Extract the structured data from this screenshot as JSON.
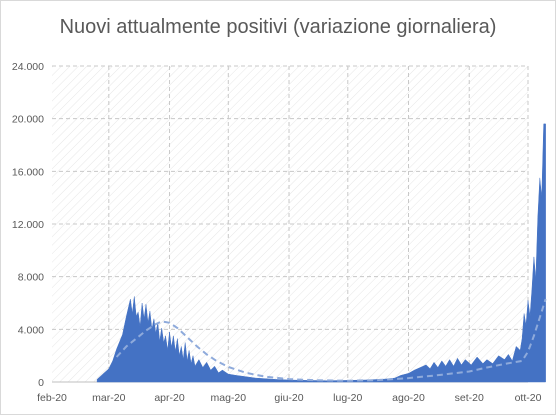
{
  "chart_data": {
    "type": "area",
    "title": "Nuovi attualmente positivi (variazione giornaliera)",
    "xlabel": "",
    "ylabel": "",
    "ylim": [
      0,
      24000
    ],
    "y_ticks": [
      0,
      4000,
      8000,
      12000,
      16000,
      20000,
      24000
    ],
    "y_tick_labels": [
      "0",
      "4.000",
      "8.000",
      "12.000",
      "16.000",
      "20.000",
      "24.000"
    ],
    "x_tick_labels": [
      "feb-20",
      "mar-20",
      "apr-20",
      "mag-20",
      "giu-20",
      "lug-20",
      "ago-20",
      "set-20",
      "ott-20"
    ],
    "x_tick_dates": [
      "2020-02-01",
      "2020-03-01",
      "2020-04-01",
      "2020-05-01",
      "2020-06-01",
      "2020-07-01",
      "2020-08-01",
      "2020-09-01",
      "2020-10-01"
    ],
    "x_range": [
      "2020-02-01",
      "2020-10-01"
    ],
    "grid": "vertical dashed and horizontal dashed",
    "colors": {
      "area": "#4472c4",
      "trend": "#8eaadb"
    },
    "series": [
      {
        "kind": "area",
        "points": [
          [
            "2020-02-24",
            200
          ],
          [
            "2020-02-27",
            600
          ],
          [
            "2020-03-01",
            1000
          ],
          [
            "2020-03-03",
            1600
          ],
          [
            "2020-03-05",
            2500
          ],
          [
            "2020-03-08",
            3600
          ],
          [
            "2020-03-10",
            5000
          ],
          [
            "2020-03-12",
            6300
          ],
          [
            "2020-03-13",
            5200
          ],
          [
            "2020-03-14",
            6500
          ],
          [
            "2020-03-15",
            5000
          ],
          [
            "2020-03-16",
            5300
          ],
          [
            "2020-03-17",
            4200
          ],
          [
            "2020-03-18",
            6000
          ],
          [
            "2020-03-19",
            4800
          ],
          [
            "2020-03-20",
            5900
          ],
          [
            "2020-03-21",
            4500
          ],
          [
            "2020-03-22",
            5400
          ],
          [
            "2020-03-23",
            4000
          ],
          [
            "2020-03-24",
            4800
          ],
          [
            "2020-03-25",
            3700
          ],
          [
            "2020-03-26",
            4500
          ],
          [
            "2020-03-27",
            3100
          ],
          [
            "2020-03-28",
            4100
          ],
          [
            "2020-03-29",
            3000
          ],
          [
            "2020-03-30",
            3500
          ],
          [
            "2020-03-31",
            2400
          ],
          [
            "2020-04-01",
            3800
          ],
          [
            "2020-04-02",
            2600
          ],
          [
            "2020-04-03",
            3500
          ],
          [
            "2020-04-04",
            2300
          ],
          [
            "2020-04-05",
            3300
          ],
          [
            "2020-04-06",
            2000
          ],
          [
            "2020-04-07",
            2700
          ],
          [
            "2020-04-08",
            1700
          ],
          [
            "2020-04-09",
            3000
          ],
          [
            "2020-04-10",
            1600
          ],
          [
            "2020-04-11",
            2400
          ],
          [
            "2020-04-12",
            1400
          ],
          [
            "2020-04-13",
            2000
          ],
          [
            "2020-04-14",
            1200
          ],
          [
            "2020-04-16",
            1700
          ],
          [
            "2020-04-18",
            1100
          ],
          [
            "2020-04-20",
            1500
          ],
          [
            "2020-04-22",
            900
          ],
          [
            "2020-04-24",
            1200
          ],
          [
            "2020-04-26",
            700
          ],
          [
            "2020-04-28",
            900
          ],
          [
            "2020-05-01",
            600
          ],
          [
            "2020-05-05",
            500
          ],
          [
            "2020-05-10",
            400
          ],
          [
            "2020-05-15",
            300
          ],
          [
            "2020-05-20",
            250
          ],
          [
            "2020-05-25",
            200
          ],
          [
            "2020-06-01",
            150
          ],
          [
            "2020-06-10",
            120
          ],
          [
            "2020-06-20",
            100
          ],
          [
            "2020-07-01",
            120
          ],
          [
            "2020-07-10",
            150
          ],
          [
            "2020-07-20",
            220
          ],
          [
            "2020-07-25",
            300
          ],
          [
            "2020-07-28",
            500
          ],
          [
            "2020-08-01",
            650
          ],
          [
            "2020-08-04",
            900
          ],
          [
            "2020-08-07",
            1100
          ],
          [
            "2020-08-10",
            1300
          ],
          [
            "2020-08-12",
            1000
          ],
          [
            "2020-08-14",
            1500
          ],
          [
            "2020-08-16",
            1100
          ],
          [
            "2020-08-18",
            1600
          ],
          [
            "2020-08-20",
            1200
          ],
          [
            "2020-08-22",
            1700
          ],
          [
            "2020-08-24",
            1200
          ],
          [
            "2020-08-26",
            1800
          ],
          [
            "2020-08-28",
            1300
          ],
          [
            "2020-08-30",
            1700
          ],
          [
            "2020-09-02",
            1300
          ],
          [
            "2020-09-05",
            1900
          ],
          [
            "2020-09-08",
            1400
          ],
          [
            "2020-09-10",
            1700
          ],
          [
            "2020-09-13",
            1400
          ],
          [
            "2020-09-16",
            2000
          ],
          [
            "2020-09-19",
            1700
          ],
          [
            "2020-09-21",
            2100
          ],
          [
            "2020-09-23",
            1600
          ],
          [
            "2020-09-25",
            2700
          ],
          [
            "2020-09-27",
            2400
          ],
          [
            "2020-09-28",
            3300
          ],
          [
            "2020-09-29",
            5200
          ],
          [
            "2020-09-30",
            4300
          ],
          [
            "2020-10-01",
            6200
          ],
          [
            "2020-10-02",
            5000
          ],
          [
            "2020-10-03",
            7000
          ],
          [
            "2020-10-04",
            9500
          ],
          [
            "2020-10-05",
            7800
          ],
          [
            "2020-10-06",
            12500
          ],
          [
            "2020-10-07",
            15500
          ],
          [
            "2020-10-08",
            14000
          ],
          [
            "2020-10-09",
            19600
          ],
          [
            "2020-10-10",
            19600
          ]
        ]
      },
      {
        "kind": "trend",
        "line_style": "dashed",
        "points": [
          [
            "2020-03-05",
            1900
          ],
          [
            "2020-03-10",
            2700
          ],
          [
            "2020-03-15",
            3300
          ],
          [
            "2020-03-20",
            3900
          ],
          [
            "2020-03-25",
            4400
          ],
          [
            "2020-03-28",
            4600
          ],
          [
            "2020-04-01",
            4500
          ],
          [
            "2020-04-05",
            4100
          ],
          [
            "2020-04-10",
            3400
          ],
          [
            "2020-04-15",
            2700
          ],
          [
            "2020-04-20",
            2100
          ],
          [
            "2020-04-25",
            1600
          ],
          [
            "2020-05-01",
            1150
          ],
          [
            "2020-05-10",
            700
          ],
          [
            "2020-05-20",
            400
          ],
          [
            "2020-06-01",
            220
          ],
          [
            "2020-06-15",
            130
          ],
          [
            "2020-07-01",
            100
          ],
          [
            "2020-07-15",
            140
          ],
          [
            "2020-08-01",
            300
          ],
          [
            "2020-08-15",
            500
          ],
          [
            "2020-09-01",
            800
          ],
          [
            "2020-09-10",
            1100
          ],
          [
            "2020-09-20",
            1400
          ],
          [
            "2020-09-28",
            1600
          ],
          [
            "2020-10-01",
            2300
          ],
          [
            "2020-10-04",
            3500
          ],
          [
            "2020-10-07",
            4900
          ],
          [
            "2020-10-10",
            6300
          ]
        ]
      }
    ]
  }
}
